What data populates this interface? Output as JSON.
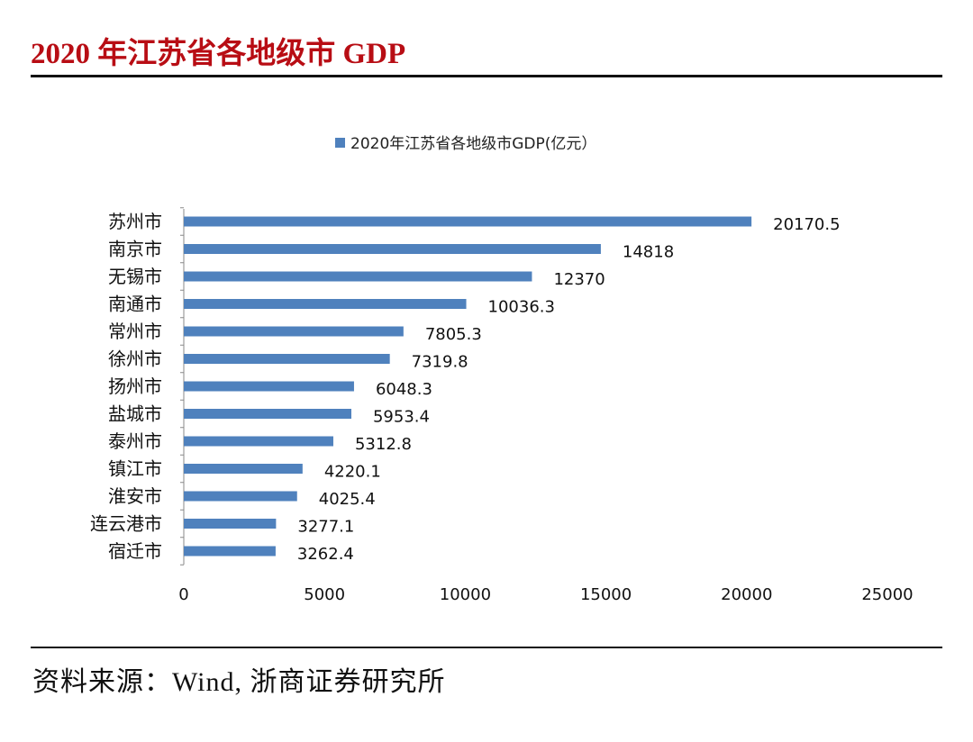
{
  "header": {
    "title": "2020 年江苏省各地级市 GDP"
  },
  "footer": {
    "source": "资料来源：Wind, 浙商证券研究所"
  },
  "chart_data": {
    "type": "bar",
    "orientation": "horizontal",
    "title": "",
    "legend": {
      "position": "top",
      "entries": [
        "2020年江苏省各地级市GDP(亿元）"
      ]
    },
    "categories": [
      "苏州市",
      "南京市",
      "无锡市",
      "南通市",
      "常州市",
      "徐州市",
      "扬州市",
      "盐城市",
      "泰州市",
      "镇江市",
      "淮安市",
      "连云港市",
      "宿迁市"
    ],
    "series": [
      {
        "name": "2020年江苏省各地级市GDP(亿元）",
        "color": "#4f81bd",
        "values": [
          20170.5,
          14818,
          12370,
          10036.3,
          7805.3,
          7319.8,
          6048.3,
          5953.4,
          5312.8,
          4220.1,
          4025.4,
          3277.1,
          3262.4
        ],
        "labels": [
          "20170.5",
          "14818",
          "12370",
          "10036.3",
          "7805.3",
          "7319.8",
          "6048.3",
          "5953.4",
          "5312.8",
          "4220.1",
          "4025.4",
          "3277.1",
          "3262.4"
        ]
      }
    ],
    "xlim": [
      0,
      25000
    ],
    "xticks": [
      "0",
      "5000",
      "10000",
      "15000",
      "20000",
      "25000"
    ],
    "grid": false,
    "xlabel": "",
    "ylabel": ""
  }
}
